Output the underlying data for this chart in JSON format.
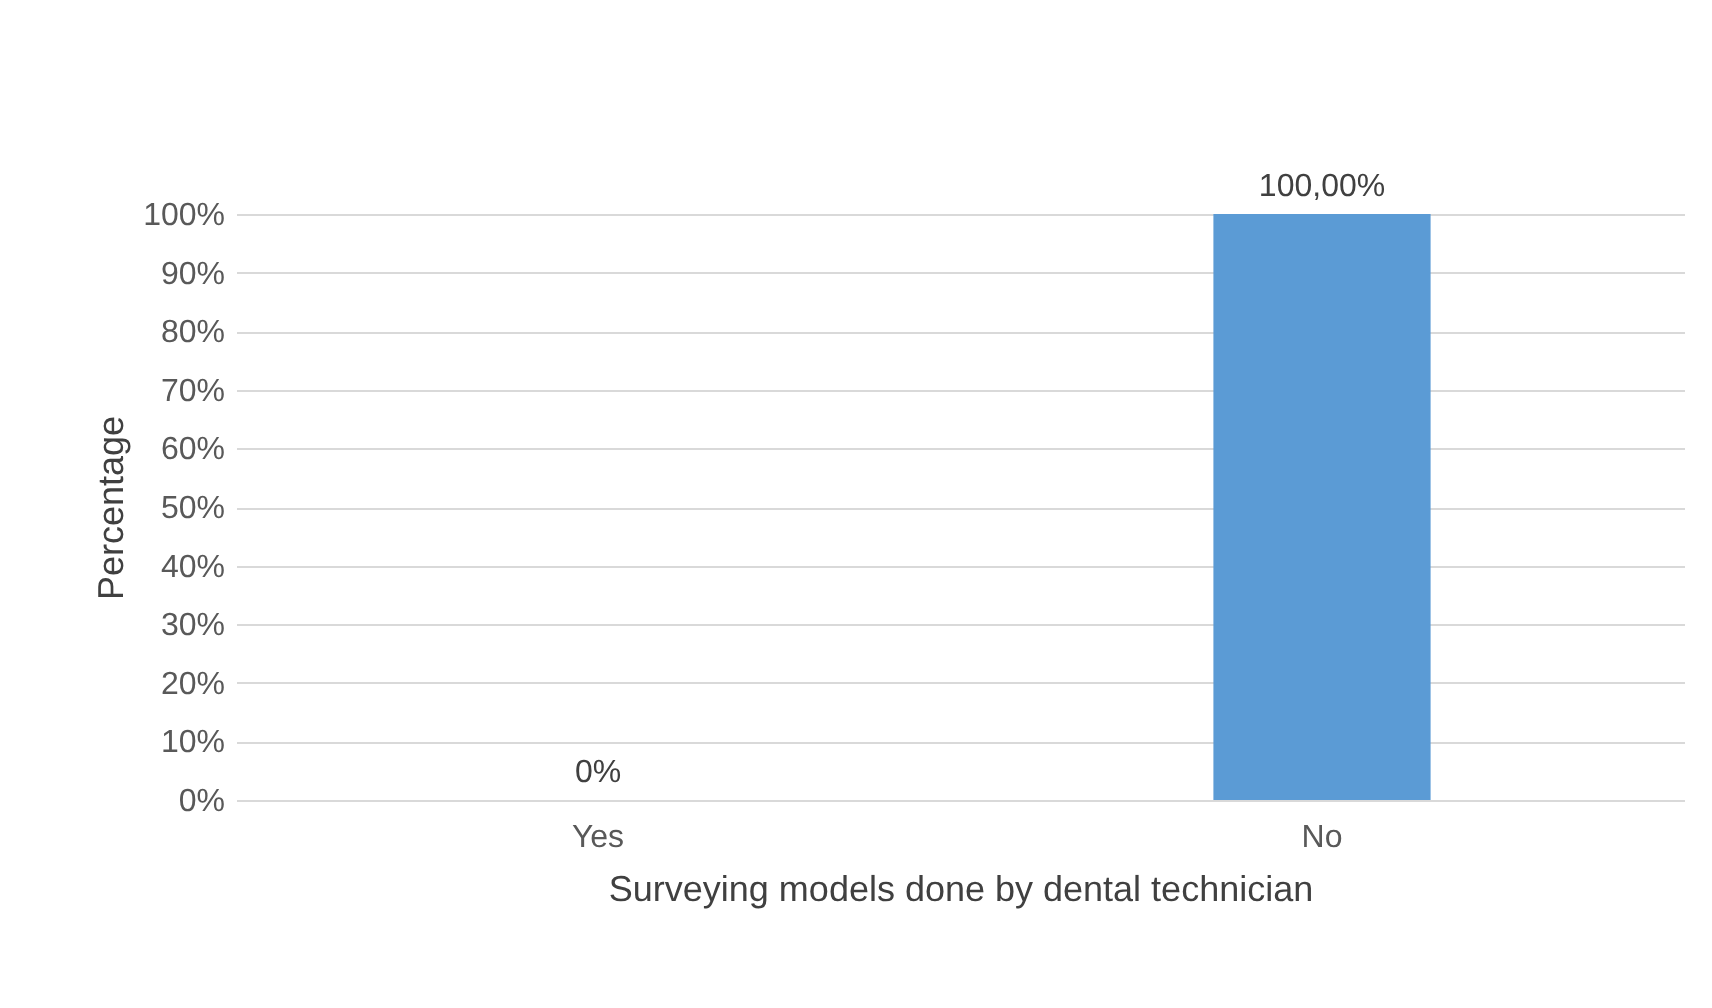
{
  "chart_data": {
    "type": "bar",
    "xlabel": "Surveying models done by dental technician",
    "ylabel": "Percentage",
    "categories": [
      "Yes",
      "No"
    ],
    "values": [
      0,
      100
    ],
    "color": "#5b9bd5",
    "value_labels": [
      "0%",
      "100,00%"
    ],
    "ylim": [
      0,
      100
    ],
    "yticks": [
      {
        "value": 0,
        "label": "0%"
      },
      {
        "value": 10,
        "label": "10%"
      },
      {
        "value": 20,
        "label": "20%"
      },
      {
        "value": 30,
        "label": "30%"
      },
      {
        "value": 40,
        "label": "40%"
      },
      {
        "value": 50,
        "label": "50%"
      },
      {
        "value": 60,
        "label": "60%"
      },
      {
        "value": 70,
        "label": "70%"
      },
      {
        "value": 80,
        "label": "80%"
      },
      {
        "value": 90,
        "label": "90%"
      },
      {
        "value": 100,
        "label": "100%"
      }
    ],
    "grid": "y"
  }
}
